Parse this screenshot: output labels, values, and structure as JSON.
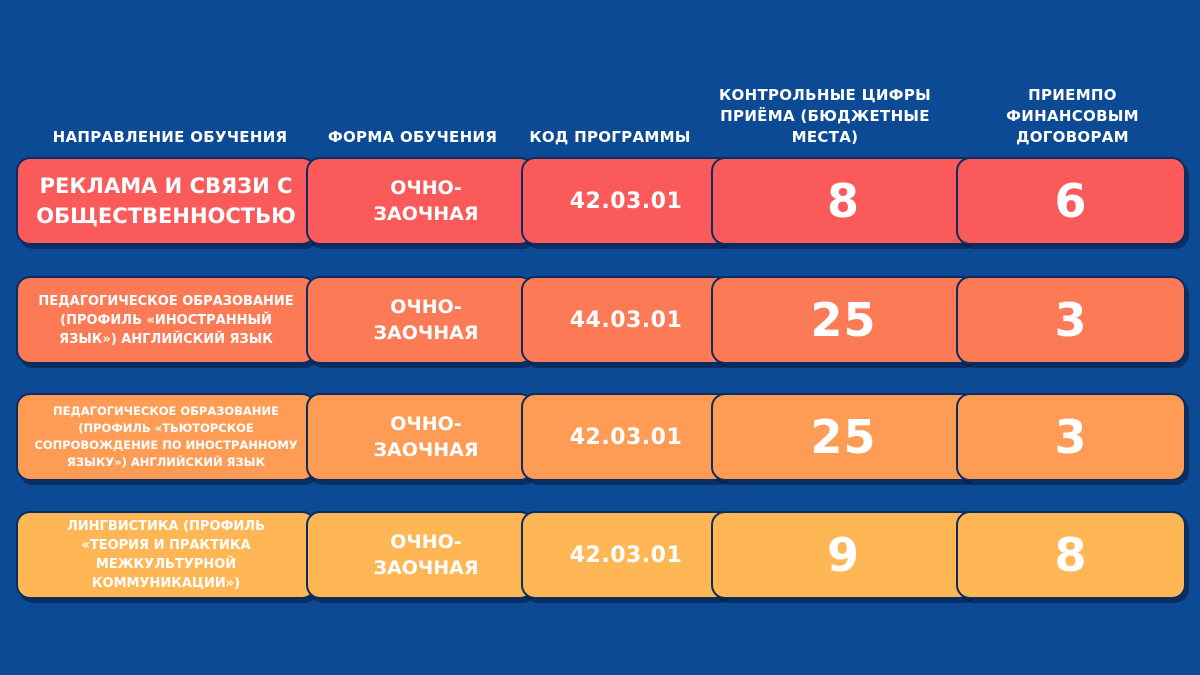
{
  "headers": {
    "direction": "НАПРАВЛЕНИЕ ОБУЧЕНИЯ",
    "form": "ФОРМА ОБУЧЕНИЯ",
    "code": "КОД ПРОГРАММЫ",
    "budget": "КОНТРОЛЬНЫЕ ЦИФРЫ ПРИЁМА (БЮДЖЕТНЫЕ МЕСТА)",
    "contract": "ПРИЕМПО ФИНАНСОВЫМ ДОГОВОРАМ"
  },
  "rows": [
    {
      "direction": "РЕКЛАМА И СВЯЗИ С ОБЩЕСТВЕННОСТЬЮ",
      "form_line1": "ОЧНО-",
      "form_line2": "ЗАОЧНАЯ",
      "code": "42.03.01",
      "budget": "8",
      "contract": "6",
      "color": "#fb5a5a"
    },
    {
      "direction": "ПЕДАГОГИЧЕСКОЕ ОБРАЗОВАНИЕ (ПРОФИЛЬ «ИНОСТРАННЫЙ ЯЗЫК») АНГЛИЙСКИЙ ЯЗЫК",
      "form_line1": "ОЧНО-",
      "form_line2": "ЗАОЧНАЯ",
      "code": "44.03.01",
      "budget": "25",
      "contract": "3",
      "color": "#fd7a56"
    },
    {
      "direction": "ПЕДАГОГИЧЕСКОЕ ОБРАЗОВАНИЕ (ПРОФИЛЬ «ТЬЮТОРСКОЕ СОПРОВОЖДЕНИЕ ПО ИНОСТРАННОМУ ЯЗЫКУ») АНГЛИЙСКИЙ ЯЗЫК",
      "form_line1": "ОЧНО-",
      "form_line2": "ЗАОЧНАЯ",
      "code": "42.03.01",
      "budget": "25",
      "contract": "3",
      "color": "#fe9c55"
    },
    {
      "direction": "ЛИНГВИСТИКА (ПРОФИЛЬ «ТЕОРИЯ И ПРАКТИКА МЕЖКУЛЬТУРНОЙ КОММУНИКАЦИИ»)",
      "form_line1": "ОЧНО-",
      "form_line2": "ЗАОЧНАЯ",
      "code": "42.03.01",
      "budget": "9",
      "contract": "8",
      "color": "#ffb755"
    }
  ],
  "background_color": "#0d4a96"
}
